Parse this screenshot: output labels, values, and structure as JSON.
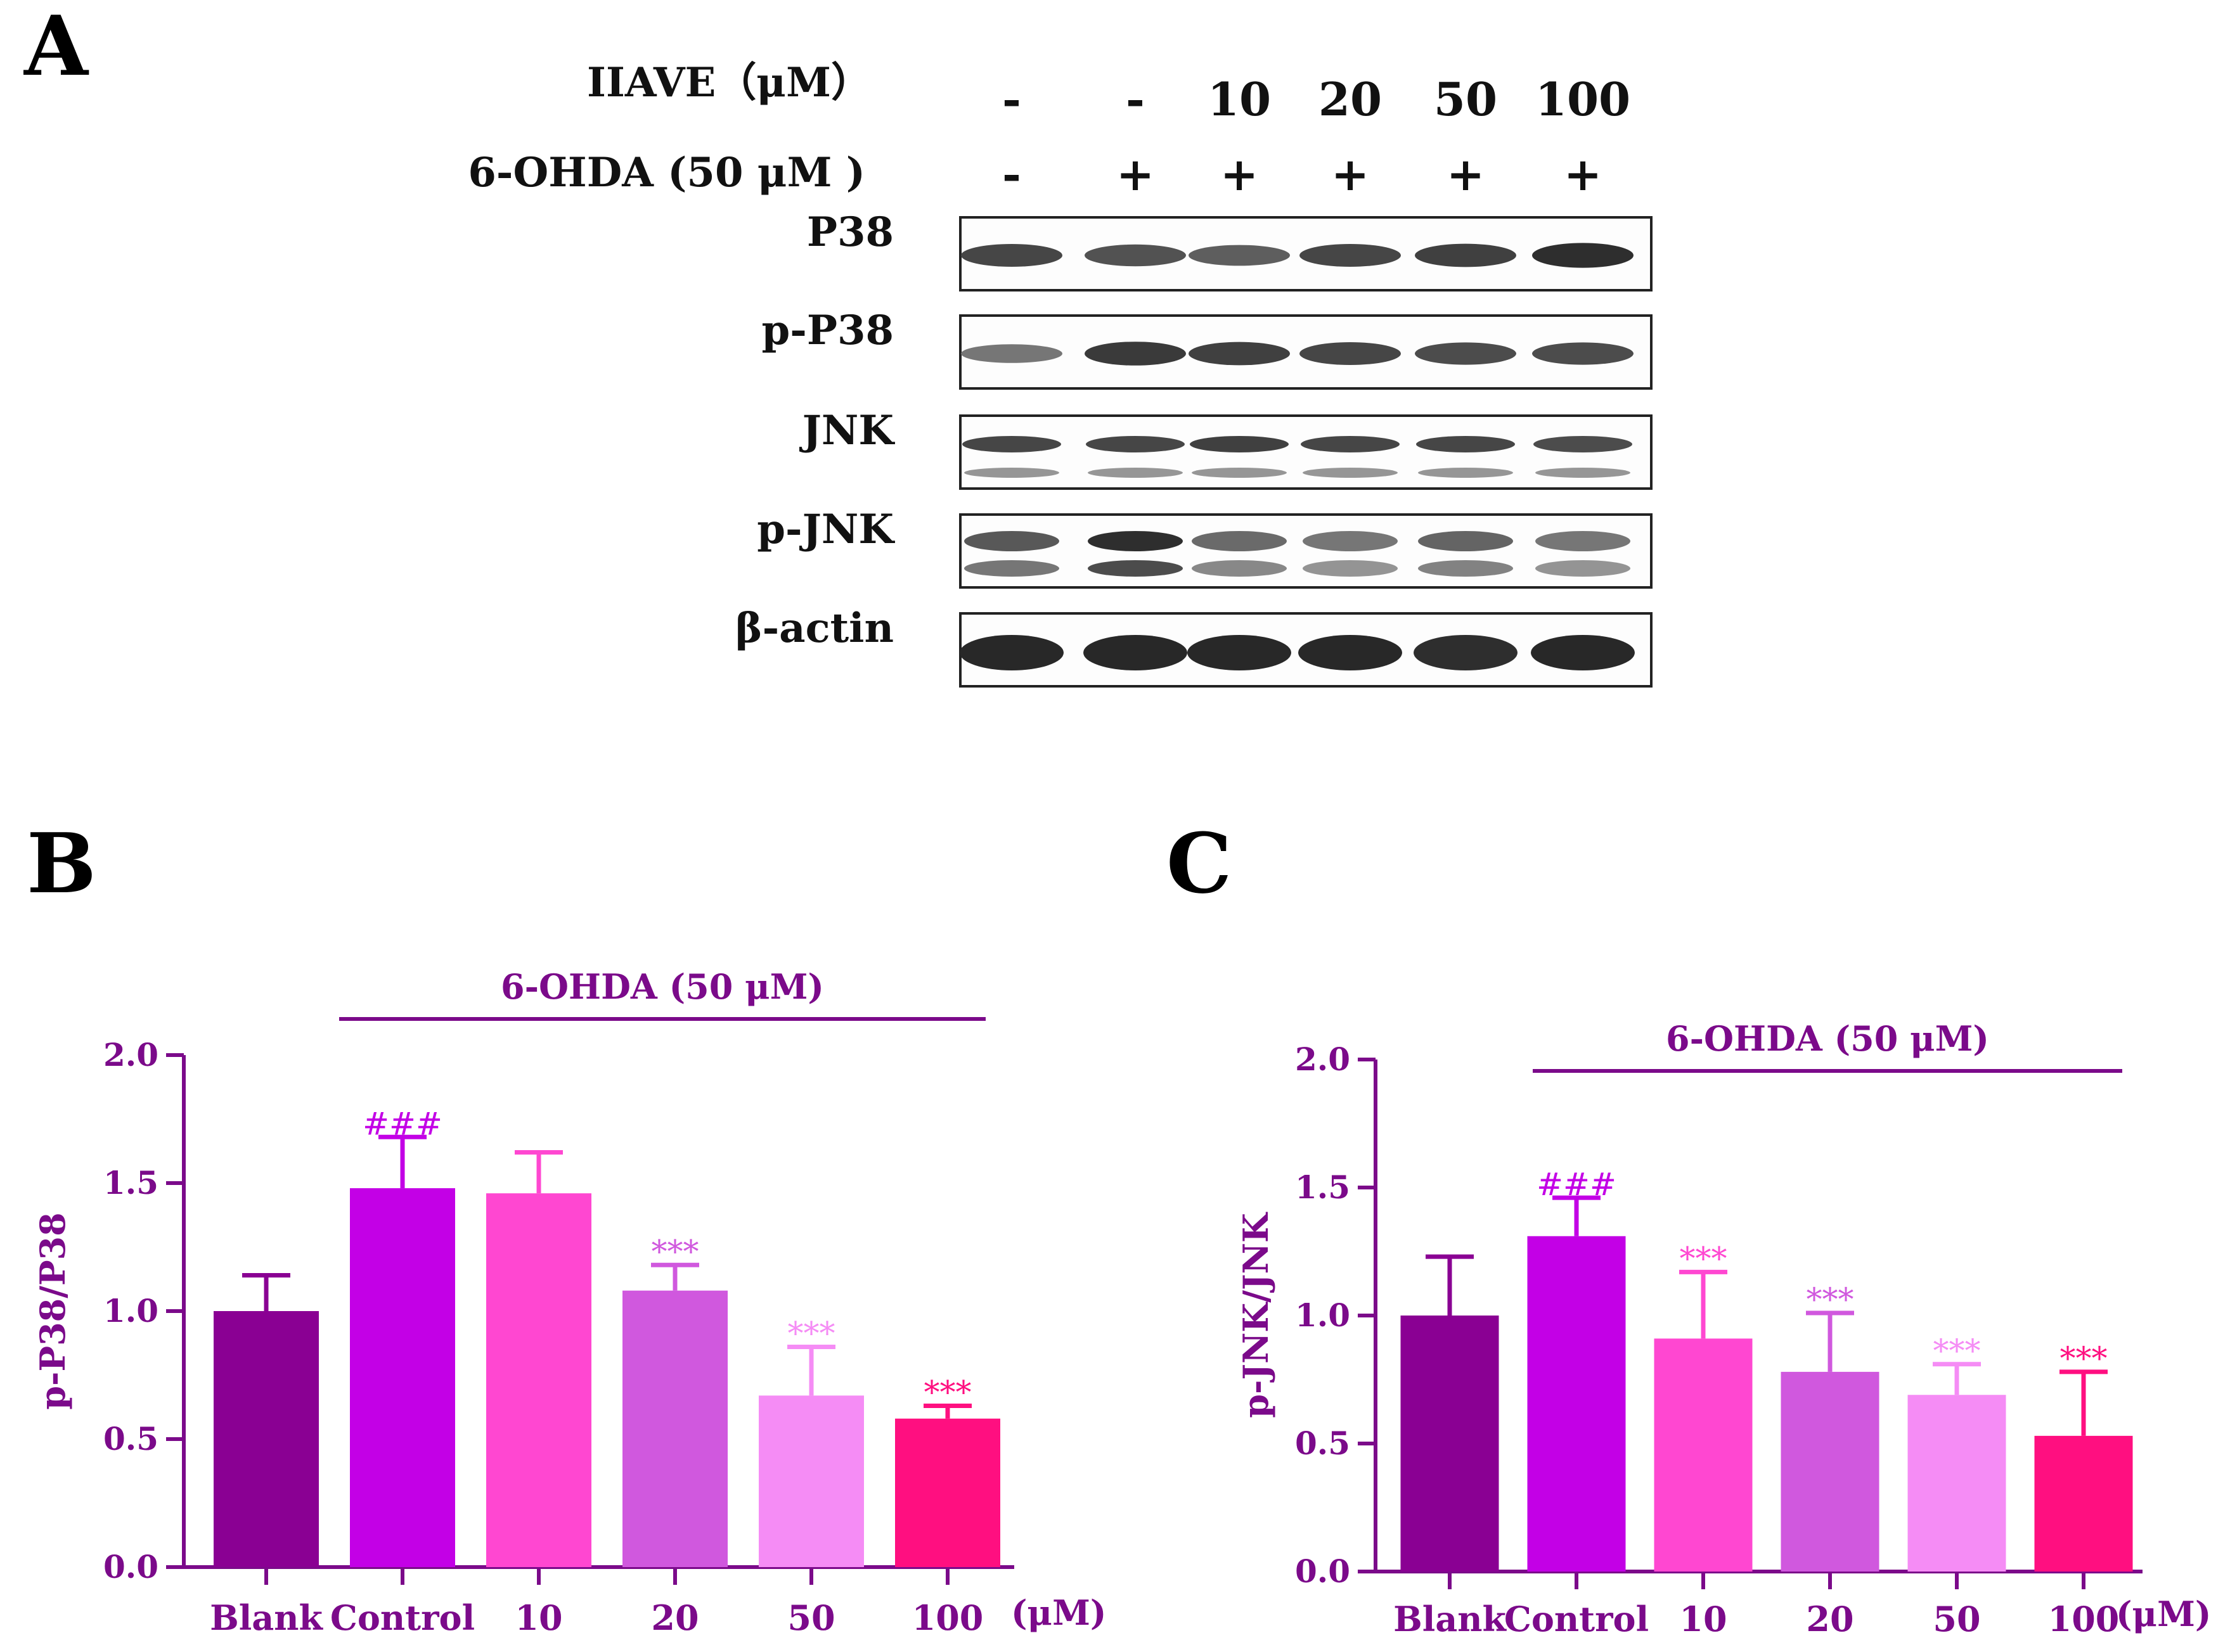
{
  "panels": {
    "a": "A",
    "b": "B",
    "c": "C"
  },
  "blot": {
    "row_labels": {
      "iiave": "IIAVE（μM）",
      "ohda": "6-OHDA (50 μM )"
    },
    "iiave_values": [
      "-",
      "-",
      "10",
      "20",
      "50",
      "100"
    ],
    "ohda_values": [
      "-",
      "+",
      "+",
      "+",
      "+",
      "+"
    ],
    "bands": [
      "P38",
      "p-P38",
      "JNK",
      "p-JNK",
      "β-actin"
    ]
  },
  "colors": {
    "axis": "#7b0a8a",
    "bars": [
      "#8a0093",
      "#c300e6",
      "#ff47d1",
      "#d058de",
      "#f58cf5",
      "#ff0f80"
    ]
  },
  "chart_data": [
    {
      "type": "bar",
      "bracket_label": "6-OHDA (50 μM)",
      "ylabel": "p-P38/P38",
      "unit": "(μM)",
      "categories": [
        "Blank",
        "Control",
        "10",
        "20",
        "50",
        "100"
      ],
      "values": [
        1.0,
        1.48,
        1.46,
        1.08,
        0.67,
        0.58
      ],
      "errors": [
        0.14,
        0.2,
        0.16,
        0.1,
        0.19,
        0.05
      ],
      "annotations": [
        "",
        "###",
        "",
        "***",
        "***",
        "***"
      ],
      "ylim": [
        0,
        2.0
      ],
      "yticks": [
        "0.0",
        "0.5",
        "1.0",
        "1.5",
        "2.0"
      ]
    },
    {
      "type": "bar",
      "bracket_label": "6-OHDA (50 μM)",
      "ylabel": "p-JNK/JNK",
      "unit": "(μM)",
      "categories": [
        "Blank",
        "Control",
        "10",
        "20",
        "50",
        "100"
      ],
      "values": [
        1.0,
        1.31,
        0.91,
        0.78,
        0.69,
        0.53
      ],
      "errors": [
        0.23,
        0.15,
        0.26,
        0.23,
        0.12,
        0.25
      ],
      "annotations": [
        "",
        "###",
        "***",
        "***",
        "***",
        "***"
      ],
      "ylim": [
        0,
        2.0
      ],
      "yticks": [
        "0.0",
        "0.5",
        "1.0",
        "1.5",
        "2.0"
      ]
    }
  ]
}
